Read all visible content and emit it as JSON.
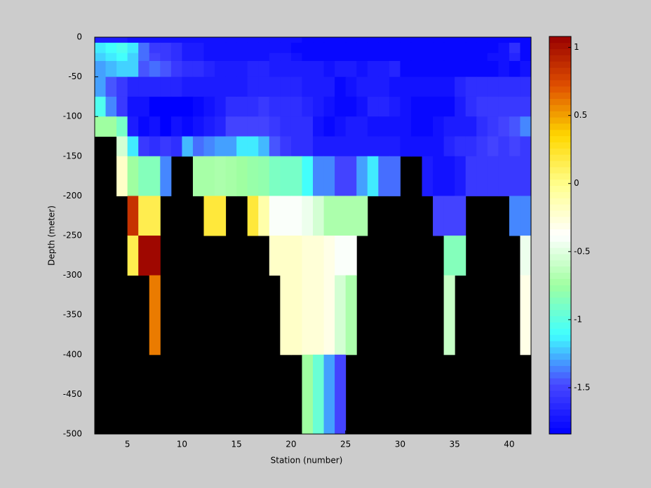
{
  "chart_data": {
    "type": "heatmap",
    "x_label": "Station (number)",
    "y_label": "Depth (meter)",
    "xlim": [
      2,
      42
    ],
    "ylim": [
      -500,
      0
    ],
    "xticks": [
      5,
      10,
      15,
      20,
      25,
      30,
      35,
      40
    ],
    "yticks": [
      0,
      -50,
      -100,
      -150,
      -200,
      -250,
      -300,
      -350,
      -400,
      -450,
      -500
    ],
    "x_edges": [
      2,
      3,
      4,
      5,
      6,
      7,
      8,
      9,
      10,
      11,
      12,
      13,
      14,
      15,
      16,
      17,
      18,
      19,
      20,
      21,
      22,
      23,
      24,
      25,
      26,
      27,
      28,
      29,
      30,
      31,
      32,
      33,
      34,
      35,
      36,
      37,
      38,
      39,
      40,
      41,
      42
    ],
    "y_edges": [
      0,
      -7,
      -20,
      -30,
      -50,
      -75,
      -100,
      -125,
      -150,
      -200,
      -250,
      -300,
      -400,
      -500
    ],
    "clim": [
      -1.84,
      1.08
    ],
    "cticks": [
      -1.5,
      -1,
      -0.5,
      0,
      0.5,
      1
    ],
    "colormap": [
      "#0000ff",
      "#4848ff",
      "#40ffff",
      "#a0ffa0",
      "#ffffff",
      "#ffff90",
      "#ffd800",
      "#e05000",
      "#990000"
    ],
    "missing_color": "#000000",
    "z": [
      [
        -1.7,
        -1.7,
        -1.7,
        -1.75,
        -1.75,
        -1.75,
        -1.75,
        -1.75,
        -1.75,
        -1.75,
        -1.75,
        -1.75,
        -1.75,
        -1.75,
        -1.75,
        -1.75,
        -1.75,
        -1.75,
        -1.75,
        -1.8,
        -1.8,
        -1.8,
        -1.8,
        -1.8,
        -1.8,
        -1.8,
        -1.8,
        -1.8,
        -1.8,
        -1.8,
        -1.8,
        -1.8,
        -1.8,
        -1.8,
        -1.8,
        -1.8,
        -1.8,
        -1.8,
        -1.8,
        -1.8
      ],
      [
        -1.15,
        -1.1,
        -1.05,
        -1.15,
        -1.4,
        -1.55,
        -1.55,
        -1.6,
        -1.7,
        -1.7,
        -1.75,
        -1.75,
        -1.75,
        -1.75,
        -1.75,
        -1.75,
        -1.75,
        -1.75,
        -1.8,
        -1.8,
        -1.8,
        -1.8,
        -1.8,
        -1.8,
        -1.8,
        -1.8,
        -1.8,
        -1.8,
        -1.8,
        -1.8,
        -1.8,
        -1.8,
        -1.8,
        -1.8,
        -1.8,
        -1.8,
        -1.8,
        -1.75,
        -1.6,
        -1.8
      ],
      [
        -1.2,
        -1.15,
        -1.1,
        -1.2,
        -1.4,
        -1.5,
        -1.55,
        -1.6,
        -1.7,
        -1.7,
        -1.75,
        -1.75,
        -1.75,
        -1.75,
        -1.75,
        -1.75,
        -1.7,
        -1.7,
        -1.75,
        -1.8,
        -1.8,
        -1.8,
        -1.8,
        -1.8,
        -1.8,
        -1.8,
        -1.8,
        -1.8,
        -1.8,
        -1.8,
        -1.8,
        -1.8,
        -1.8,
        -1.8,
        -1.8,
        -1.8,
        -1.75,
        -1.75,
        -1.65,
        -1.8
      ],
      [
        -1.3,
        -1.25,
        -1.2,
        -1.2,
        -1.45,
        -1.4,
        -1.45,
        -1.55,
        -1.6,
        -1.6,
        -1.65,
        -1.7,
        -1.7,
        -1.7,
        -1.65,
        -1.65,
        -1.7,
        -1.7,
        -1.7,
        -1.7,
        -1.7,
        -1.75,
        -1.7,
        -1.7,
        -1.75,
        -1.7,
        -1.7,
        -1.65,
        -1.8,
        -1.8,
        -1.8,
        -1.8,
        -1.8,
        -1.8,
        -1.8,
        -1.8,
        -1.8,
        -1.75,
        -1.8,
        -1.75
      ],
      [
        -1.3,
        -1.45,
        -1.55,
        -1.65,
        -1.65,
        -1.65,
        -1.65,
        -1.65,
        -1.7,
        -1.7,
        -1.7,
        -1.7,
        -1.7,
        -1.7,
        -1.65,
        -1.65,
        -1.65,
        -1.65,
        -1.65,
        -1.7,
        -1.7,
        -1.7,
        -1.8,
        -1.75,
        -1.7,
        -1.7,
        -1.7,
        -1.75,
        -1.75,
        -1.75,
        -1.75,
        -1.75,
        -1.75,
        -1.65,
        -1.6,
        -1.6,
        -1.6,
        -1.6,
        -1.6,
        -1.6
      ],
      [
        -1.05,
        -1.35,
        -1.55,
        -1.75,
        -1.75,
        -1.85,
        -1.85,
        -1.85,
        -1.85,
        -1.8,
        -1.75,
        -1.7,
        -1.6,
        -1.6,
        -1.6,
        -1.55,
        -1.6,
        -1.6,
        -1.6,
        -1.65,
        -1.7,
        -1.75,
        -1.8,
        -1.8,
        -1.75,
        -1.65,
        -1.65,
        -1.7,
        -1.75,
        -1.8,
        -1.8,
        -1.8,
        -1.8,
        -1.7,
        -1.6,
        -1.55,
        -1.55,
        -1.55,
        -1.55,
        -1.55
      ],
      [
        -0.75,
        -0.75,
        -0.9,
        -1.7,
        -1.8,
        -1.75,
        -1.85,
        -1.75,
        -1.8,
        -1.75,
        -1.7,
        -1.65,
        -1.5,
        -1.5,
        -1.5,
        -1.5,
        -1.55,
        -1.6,
        -1.6,
        -1.6,
        -1.75,
        -1.8,
        -1.75,
        -1.7,
        -1.7,
        -1.75,
        -1.75,
        -1.75,
        -1.75,
        -1.8,
        -1.8,
        -1.75,
        -1.7,
        -1.7,
        -1.7,
        -1.6,
        -1.55,
        -1.5,
        -1.45,
        -1.35
      ],
      [
        null,
        null,
        -0.55,
        -1.15,
        -1.55,
        -1.6,
        -1.55,
        -1.6,
        -1.25,
        -1.4,
        -1.35,
        -1.3,
        -1.3,
        -1.15,
        -1.15,
        -1.25,
        -1.45,
        -1.55,
        -1.6,
        -1.6,
        -1.7,
        -1.7,
        -1.7,
        -1.7,
        -1.7,
        -1.7,
        -1.7,
        -1.7,
        -1.75,
        -1.75,
        -1.75,
        -1.75,
        -1.65,
        -1.6,
        -1.6,
        -1.55,
        -1.5,
        -1.55,
        -1.5,
        -1.55
      ],
      [
        null,
        null,
        -0.2,
        -0.75,
        -0.85,
        -0.85,
        -1.35,
        null,
        null,
        -0.72,
        -0.72,
        -0.7,
        -0.72,
        -0.75,
        -0.78,
        -0.8,
        -0.88,
        -0.9,
        -0.9,
        -1.1,
        -1.35,
        -1.35,
        -1.5,
        -1.5,
        -1.3,
        -1.15,
        -1.4,
        -1.4,
        null,
        null,
        -1.7,
        -1.75,
        -1.75,
        -1.7,
        -1.55,
        -1.55,
        -1.55,
        -1.55,
        -1.55,
        -1.55
      ],
      [
        null,
        null,
        null,
        0.85,
        0.15,
        0.15,
        null,
        null,
        null,
        null,
        0.2,
        0.2,
        null,
        null,
        0.2,
        -0.1,
        -0.4,
        -0.4,
        -0.4,
        -0.45,
        -0.55,
        -0.7,
        -0.7,
        -0.7,
        -0.7,
        null,
        null,
        null,
        null,
        null,
        null,
        -1.5,
        -1.5,
        -1.5,
        null,
        null,
        null,
        null,
        -1.35,
        -1.35
      ],
      [
        null,
        null,
        null,
        0.15,
        1.05,
        1.05,
        null,
        null,
        null,
        null,
        null,
        null,
        null,
        null,
        null,
        null,
        -0.2,
        -0.2,
        -0.2,
        -0.25,
        -0.25,
        -0.3,
        -0.4,
        -0.4,
        null,
        null,
        null,
        null,
        null,
        null,
        null,
        null,
        -0.85,
        -0.85,
        null,
        null,
        null,
        null,
        null,
        -0.45
      ],
      [
        null,
        null,
        null,
        null,
        null,
        0.6,
        null,
        null,
        null,
        null,
        null,
        null,
        null,
        null,
        null,
        null,
        null,
        -0.2,
        -0.2,
        -0.25,
        -0.25,
        -0.3,
        -0.55,
        -0.7,
        null,
        null,
        null,
        null,
        null,
        null,
        null,
        null,
        -0.6,
        null,
        null,
        null,
        null,
        null,
        null,
        -0.3
      ],
      [
        null,
        null,
        null,
        null,
        null,
        null,
        null,
        null,
        null,
        null,
        null,
        null,
        null,
        null,
        null,
        null,
        null,
        null,
        null,
        -0.75,
        -0.95,
        -1.3,
        -1.5,
        null,
        null,
        null,
        null,
        null,
        null,
        null,
        null,
        null,
        null,
        null,
        null,
        null,
        null,
        null,
        null,
        null
      ]
    ]
  }
}
